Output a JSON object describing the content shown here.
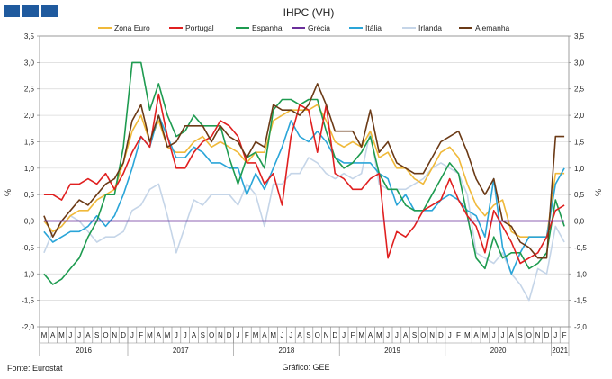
{
  "chart_data": {
    "type": "line",
    "title": "IHPC (VH)",
    "ylabel_left": "%",
    "ylabel_right": "%",
    "ylim": [
      -2.0,
      3.5
    ],
    "y_ticks": [
      "3,5",
      "3,0",
      "2,5",
      "2,0",
      "1,5",
      "1,0",
      "0,5",
      "0,0",
      "-0,5",
      "-1,0",
      "-1,5",
      "-2,0"
    ],
    "x_months": [
      "M",
      "A",
      "M",
      "J",
      "J",
      "A",
      "S",
      "O",
      "N",
      "D",
      "J",
      "F",
      "M",
      "A",
      "M",
      "J",
      "J",
      "A",
      "S",
      "O",
      "N",
      "D",
      "J",
      "F",
      "M",
      "A",
      "M",
      "J",
      "J",
      "A",
      "S",
      "O",
      "N",
      "D",
      "J",
      "F",
      "M",
      "A",
      "M",
      "J",
      "J",
      "A",
      "S",
      "O",
      "N",
      "D",
      "J",
      "F",
      "M",
      "A",
      "M",
      "J",
      "J",
      "A",
      "S",
      "O",
      "N",
      "D",
      "J",
      "F"
    ],
    "x_years": [
      {
        "label": "2016",
        "months": 10
      },
      {
        "label": "2017",
        "months": 12
      },
      {
        "label": "2018",
        "months": 12
      },
      {
        "label": "2019",
        "months": 12
      },
      {
        "label": "2020",
        "months": 12
      },
      {
        "label": "2021",
        "months": 2
      }
    ],
    "series": [
      {
        "name": "Zona Euro",
        "color": "#f0b93a",
        "values": [
          0.0,
          -0.2,
          -0.1,
          0.1,
          0.2,
          0.2,
          0.4,
          0.5,
          0.6,
          1.1,
          1.7,
          2.0,
          1.5,
          1.9,
          1.4,
          1.3,
          1.3,
          1.5,
          1.6,
          1.4,
          1.5,
          1.4,
          1.3,
          1.1,
          1.3,
          1.3,
          1.9,
          2.0,
          2.1,
          2.1,
          2.1,
          2.2,
          1.9,
          1.5,
          1.4,
          1.5,
          1.4,
          1.7,
          1.2,
          1.3,
          1.0,
          1.0,
          0.8,
          0.7,
          1.0,
          1.3,
          1.4,
          1.2,
          0.7,
          0.3,
          0.1,
          0.3,
          0.4,
          -0.2,
          -0.3,
          -0.3,
          -0.3,
          -0.3,
          0.9,
          0.9
        ]
      },
      {
        "name": "Portugal",
        "color": "#e02020",
        "values": [
          0.5,
          0.5,
          0.4,
          0.7,
          0.7,
          0.8,
          0.7,
          0.9,
          0.6,
          0.9,
          1.3,
          1.6,
          1.4,
          2.4,
          1.6,
          1.0,
          1.0,
          1.3,
          1.5,
          1.6,
          1.9,
          1.8,
          1.6,
          1.1,
          1.1,
          0.7,
          0.9,
          0.3,
          1.6,
          2.2,
          2.1,
          1.3,
          2.2,
          0.9,
          0.8,
          0.6,
          0.6,
          0.8,
          0.9,
          -0.7,
          -0.2,
          -0.3,
          -0.1,
          0.2,
          0.3,
          0.4,
          0.8,
          0.4,
          0.1,
          -0.1,
          -0.6,
          0.2,
          -0.1,
          -0.4,
          -0.8,
          -0.7,
          -0.6,
          -0.3,
          0.2,
          0.3
        ]
      },
      {
        "name": "Espanha",
        "color": "#1e9b50",
        "values": [
          -1.0,
          -1.2,
          -1.1,
          -0.9,
          -0.7,
          -0.3,
          0.0,
          0.5,
          0.5,
          1.4,
          3.0,
          3.0,
          2.1,
          2.6,
          2.0,
          1.6,
          1.7,
          2.0,
          1.8,
          1.8,
          1.8,
          1.2,
          0.7,
          1.2,
          1.3,
          1.0,
          2.1,
          2.3,
          2.3,
          2.2,
          2.3,
          2.3,
          1.7,
          1.2,
          1.0,
          1.1,
          1.3,
          1.6,
          0.9,
          0.6,
          0.6,
          0.3,
          0.2,
          0.2,
          0.5,
          0.8,
          1.1,
          0.9,
          0.1,
          -0.7,
          -0.9,
          -0.3,
          -0.7,
          -0.6,
          -0.6,
          -0.9,
          -0.8,
          -0.6,
          0.4,
          -0.1
        ]
      },
      {
        "name": "Grécia",
        "color": "#6a2f9a",
        "values": [
          0,
          0,
          0,
          0,
          0,
          0,
          0,
          0,
          0,
          0,
          0,
          0,
          0,
          0,
          0,
          0,
          0,
          0,
          0,
          0,
          0,
          0,
          0,
          0,
          0,
          0,
          0,
          0,
          0,
          0,
          0,
          0,
          0,
          0,
          0,
          0,
          0,
          0,
          0,
          0,
          0,
          0,
          0,
          0,
          0,
          0,
          0,
          0,
          0,
          0,
          0,
          0,
          0,
          0,
          0,
          0,
          0,
          0,
          0,
          0
        ]
      },
      {
        "name": "Itália",
        "color": "#2aa5d8",
        "values": [
          -0.2,
          -0.4,
          -0.3,
          -0.2,
          -0.2,
          -0.1,
          0.1,
          -0.1,
          0.1,
          0.5,
          1.0,
          1.6,
          1.4,
          2.0,
          1.6,
          1.2,
          1.2,
          1.4,
          1.3,
          1.1,
          1.1,
          1.0,
          1.0,
          0.5,
          0.9,
          0.6,
          1.0,
          1.4,
          1.9,
          1.6,
          1.5,
          1.7,
          1.5,
          1.2,
          1.1,
          1.1,
          1.1,
          1.1,
          0.9,
          0.8,
          0.3,
          0.5,
          0.2,
          0.2,
          0.2,
          0.4,
          0.5,
          0.4,
          0.2,
          0.1,
          -0.3,
          0.8,
          -0.5,
          -1.0,
          -0.6,
          -0.3,
          -0.3,
          -0.3,
          0.7,
          1.0
        ]
      },
      {
        "name": "Irlanda",
        "color": "#c5d5e8",
        "values": [
          -0.6,
          -0.2,
          -0.1,
          0.1,
          0.0,
          -0.2,
          -0.4,
          -0.3,
          -0.3,
          -0.2,
          0.2,
          0.3,
          0.6,
          0.7,
          0.1,
          -0.6,
          -0.1,
          0.4,
          0.3,
          0.5,
          0.5,
          0.5,
          0.3,
          0.7,
          0.5,
          -0.1,
          0.7,
          0.7,
          0.9,
          0.9,
          1.2,
          1.1,
          0.9,
          0.8,
          0.9,
          0.8,
          0.9,
          1.7,
          0.7,
          0.6,
          0.6,
          0.6,
          0.7,
          0.8,
          1.0,
          1.1,
          1.0,
          0.9,
          0.5,
          -0.6,
          -0.7,
          -0.8,
          -0.6,
          -1.0,
          -1.2,
          -1.5,
          -0.9,
          -1.0,
          -0.1,
          -0.4
        ]
      },
      {
        "name": "Alemanha",
        "color": "#6b3a16",
        "values": [
          0.1,
          -0.3,
          0.0,
          0.2,
          0.4,
          0.3,
          0.5,
          0.7,
          0.8,
          1.1,
          1.9,
          2.2,
          1.5,
          2.0,
          1.4,
          1.5,
          1.8,
          1.8,
          1.8,
          1.5,
          1.8,
          1.6,
          1.5,
          1.2,
          1.5,
          1.4,
          2.2,
          2.1,
          2.1,
          2.0,
          2.2,
          2.6,
          2.2,
          1.7,
          1.7,
          1.7,
          1.4,
          2.1,
          1.3,
          1.5,
          1.1,
          1.0,
          0.9,
          0.9,
          1.2,
          1.5,
          1.6,
          1.7,
          1.3,
          0.8,
          0.5,
          0.8,
          0.0,
          -0.1,
          -0.4,
          -0.5,
          -0.7,
          -0.7,
          1.6,
          1.6
        ]
      }
    ]
  },
  "footer": {
    "source": "Fonte:  Eurostat",
    "credit": "Gráfico: GEE"
  }
}
